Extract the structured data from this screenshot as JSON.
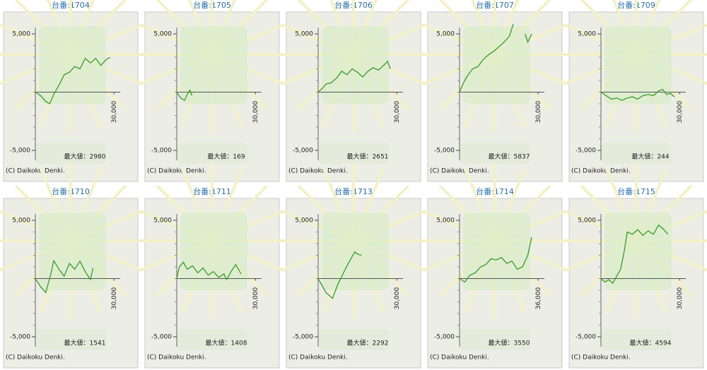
{
  "chart_data": [
    {
      "type": "line",
      "title": "台番:1704",
      "annotation": "最大値：2980",
      "source": "(C) Daikoku Denki.",
      "color": "#3a9a2a",
      "x": [
        0,
        2000,
        4000,
        5500,
        7000,
        9000,
        11000,
        13000,
        15000,
        17000,
        19000,
        21000,
        23000,
        25000,
        27000,
        28500
      ],
      "values": [
        0,
        -300,
        -800,
        -1000,
        -200,
        600,
        1500,
        1700,
        2200,
        2000,
        2900,
        2500,
        2900,
        2300,
        2800,
        2980
      ],
      "xlim": [
        0,
        31000
      ],
      "xticks": [
        {
          "value": 30000,
          "label": "30,000"
        }
      ],
      "ylim": [
        -5000,
        5000
      ],
      "yticks": [
        {
          "value": -5000,
          "label": "-5,000"
        },
        {
          "value": 5000,
          "label": "5,000"
        }
      ]
    },
    {
      "type": "line",
      "title": "台番:1705",
      "annotation": "最大値：169",
      "source": "(C) Daikoku Denki.",
      "color": "#3a9a2a",
      "x": [
        0,
        1500,
        3000,
        4000,
        5000,
        5800
      ],
      "values": [
        0,
        -500,
        -700,
        -200,
        169,
        -300
      ],
      "xlim": [
        0,
        31000
      ],
      "xticks": [
        {
          "value": 30000,
          "label": "30,000"
        }
      ],
      "ylim": [
        -5000,
        5000
      ],
      "yticks": [
        {
          "value": -5000,
          "label": "-5,000"
        },
        {
          "value": 5000,
          "label": "5,000"
        }
      ]
    },
    {
      "type": "line",
      "title": "台番:1706",
      "annotation": "最大値：2651",
      "source": "(C) Daikoku Denki.",
      "color": "#3a9a2a",
      "x": [
        0,
        1500,
        3000,
        5000,
        7000,
        9000,
        11000,
        13000,
        15000,
        17000,
        19000,
        21000,
        23000,
        25000,
        26500,
        27500
      ],
      "values": [
        0,
        300,
        700,
        800,
        1200,
        1800,
        1500,
        2000,
        1700,
        1300,
        1800,
        2100,
        1900,
        2300,
        2651,
        2000
      ],
      "xlim": [
        0,
        31000
      ],
      "xticks": [
        {
          "value": 30000,
          "label": "30,000"
        }
      ],
      "ylim": [
        -5000,
        5000
      ],
      "yticks": [
        {
          "value": -5000,
          "label": "-5,000"
        },
        {
          "value": 5000,
          "label": "5,000"
        }
      ]
    },
    {
      "type": "line",
      "title": "台番:1707",
      "annotation": "最大値：5837",
      "source": "(C) Daikoku Denki.",
      "color": "#3a9a2a",
      "x": [
        0,
        1500,
        3000,
        5000,
        7000,
        9000,
        11000,
        13000,
        15000,
        17000,
        19000,
        20500,
        23000,
        25000,
        26000,
        27500
      ],
      "values": [
        0,
        800,
        1400,
        2000,
        2200,
        2800,
        3200,
        3500,
        3900,
        4300,
        4800,
        5837,
        null,
        5000,
        4300,
        5000
      ],
      "xlim": [
        0,
        31000
      ],
      "xticks": [
        {
          "value": 30000,
          "label": "30,000"
        }
      ],
      "ylim": [
        -5000,
        5000
      ],
      "yticks": [
        {
          "value": -5000,
          "label": "-5,000"
        },
        {
          "value": 5000,
          "label": "5,000"
        }
      ]
    },
    {
      "type": "line",
      "title": "台番:1709",
      "annotation": "最大値：244",
      "source": "(C) Daikoku Denki.",
      "color": "#3a9a2a",
      "x": [
        0,
        2000,
        4000,
        6000,
        8000,
        10000,
        12000,
        14000,
        16000,
        18000,
        20000,
        22000,
        23500,
        25000,
        26500,
        28000
      ],
      "values": [
        0,
        -300,
        -600,
        -500,
        -700,
        -500,
        -400,
        -600,
        -300,
        -200,
        -300,
        100,
        244,
        -200,
        -100,
        -400
      ],
      "xlim": [
        0,
        31000
      ],
      "xticks": [
        {
          "value": 30000,
          "label": "30,000"
        }
      ],
      "ylim": [
        -5000,
        5000
      ],
      "yticks": [
        {
          "value": -5000,
          "label": "-5,000"
        },
        {
          "value": 5000,
          "label": "5,000"
        }
      ]
    },
    {
      "type": "line",
      "title": "台番:1710",
      "annotation": "最大値：1541",
      "source": "(C) Daikoku Denki.",
      "color": "#3a9a2a",
      "x": [
        0,
        2000,
        4000,
        6000,
        7000,
        9000,
        11000,
        13000,
        15000,
        17000,
        19000,
        21000,
        22000
      ],
      "values": [
        0,
        -700,
        -1200,
        500,
        1541,
        800,
        200,
        1300,
        800,
        1500,
        600,
        -100,
        900
      ],
      "xlim": [
        0,
        31000
      ],
      "xticks": [
        {
          "value": 30000,
          "label": "30,000"
        }
      ],
      "ylim": [
        -5000,
        5000
      ],
      "yticks": [
        {
          "value": -5000,
          "label": "-5,000"
        },
        {
          "value": 5000,
          "label": "5,000"
        }
      ]
    },
    {
      "type": "line",
      "title": "台番:1711",
      "annotation": "最大値：1408",
      "source": "(C) Daikoku Denki.",
      "color": "#3a9a2a",
      "x": [
        0,
        1000,
        2500,
        4000,
        6000,
        8000,
        10000,
        12000,
        14000,
        16000,
        18000,
        19000,
        21000,
        22500,
        24500
      ],
      "values": [
        0,
        1000,
        1408,
        800,
        1100,
        500,
        900,
        300,
        600,
        100,
        400,
        -100,
        700,
        1200,
        400
      ],
      "xlim": [
        0,
        31000
      ],
      "xticks": [
        {
          "value": 30000,
          "label": "30,000"
        }
      ],
      "ylim": [
        -5000,
        5000
      ],
      "yticks": [
        {
          "value": -5000,
          "label": "-5,000"
        },
        {
          "value": 5000,
          "label": "5,000"
        }
      ]
    },
    {
      "type": "line",
      "title": "台番:1713",
      "annotation": "最大値：2292",
      "source": "(C) Daikoku Denki.",
      "color": "#3a9a2a",
      "x": [
        0,
        3000,
        5500,
        7500,
        9000,
        11000,
        13000,
        14000,
        15000,
        16500
      ],
      "values": [
        0,
        -1200,
        -1700,
        -500,
        200,
        1100,
        1900,
        2292,
        2100,
        2000
      ],
      "xlim": [
        0,
        31000
      ],
      "xticks": [
        {
          "value": 30000,
          "label": "30,000"
        }
      ],
      "ylim": [
        -5000,
        5000
      ],
      "yticks": [
        {
          "value": -5000,
          "label": "-5,000"
        },
        {
          "value": 5000,
          "label": "5,000"
        }
      ]
    },
    {
      "type": "line",
      "title": "台番:1714",
      "annotation": "最大値：3550",
      "source": "(C) Daikoku Denki.",
      "color": "#3a9a2a",
      "x": [
        0,
        2400,
        4800,
        7200,
        9600,
        12000,
        14400,
        16800,
        19200,
        21600,
        24000,
        26400,
        28800,
        31200,
        33000
      ],
      "values": [
        0,
        -300,
        300,
        500,
        1000,
        1200,
        1700,
        1600,
        1800,
        1300,
        1500,
        800,
        1000,
        2000,
        3550
      ],
      "xlim": [
        0,
        37200
      ],
      "xticks": [
        {
          "value": 36000,
          "label": "36,000"
        }
      ],
      "ylim": [
        -5000,
        5000
      ],
      "yticks": [
        {
          "value": -5000,
          "label": "-5,000"
        },
        {
          "value": 5000,
          "label": "5,000"
        }
      ]
    },
    {
      "type": "line",
      "title": "台番:1715",
      "annotation": "最大値：4594",
      "source": "(C) Daikoku Denki.",
      "color": "#3a9a2a",
      "x": [
        0,
        1500,
        3000,
        4500,
        6000,
        7500,
        9000,
        10000,
        12000,
        14000,
        16000,
        18000,
        20000,
        22000,
        24000,
        25500
      ],
      "values": [
        0,
        -300,
        -100,
        -400,
        200,
        800,
        2500,
        4000,
        3800,
        4200,
        3700,
        4100,
        3800,
        4594,
        4200,
        3800
      ],
      "xlim": [
        0,
        31000
      ],
      "xticks": [
        {
          "value": 30000,
          "label": "30,000"
        }
      ],
      "ylim": [
        -5000,
        5000
      ],
      "yticks": [
        {
          "value": -5000,
          "label": "-5,000"
        },
        {
          "value": 5000,
          "label": "5,000"
        }
      ]
    }
  ]
}
